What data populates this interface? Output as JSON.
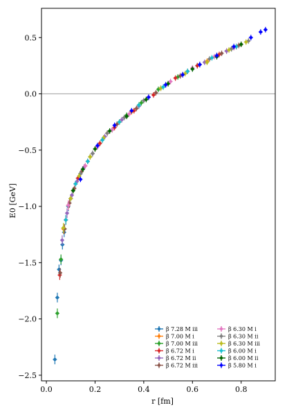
{
  "chart_data": {
    "type": "scatter",
    "xlabel": "r [fm]",
    "ylabel": "E0 [GeV]",
    "xlim": [
      -0.02,
      0.94
    ],
    "ylim": [
      -2.55,
      0.76
    ],
    "xticks": [
      "0.0",
      "0.2",
      "0.4",
      "0.6",
      "0.8"
    ],
    "xtick_values": [
      0.0,
      0.2,
      0.4,
      0.6,
      0.8
    ],
    "yticks": [
      "−2.5",
      "−2.0",
      "−1.5",
      "−1.0",
      "−0.5",
      "0.0",
      "0.5"
    ],
    "ytick_values": [
      -2.5,
      -2.0,
      -1.5,
      -1.0,
      -0.5,
      0.0,
      0.5
    ],
    "reference_line": 0.0,
    "legend_position": "bottom-right",
    "legend_columns": 2,
    "series": [
      {
        "name": "β 7.28 M iii",
        "color": "#1f77b4",
        "x": [
          0.035,
          0.045,
          0.052,
          0.06,
          0.066,
          0.073,
          0.08,
          0.09,
          0.1,
          0.11,
          0.12,
          0.13,
          0.14,
          0.15,
          0.17,
          0.19
        ],
        "y": [
          -2.36,
          -1.81,
          -1.56,
          -1.48,
          -1.34,
          -1.23,
          -1.12,
          -1.0,
          -0.93,
          -0.86,
          -0.8,
          -0.75,
          -0.71,
          -0.67,
          -0.6,
          -0.53
        ]
      },
      {
        "name": "β 7.00 M i",
        "color": "#ff7f0e",
        "x": [
          0.07,
          0.09,
          0.11,
          0.13,
          0.16,
          0.2,
          0.25,
          0.3,
          0.35,
          0.42,
          0.5,
          0.58,
          0.66,
          0.74,
          0.8
        ],
        "y": [
          -1.2,
          -0.99,
          -0.86,
          -0.75,
          -0.64,
          -0.49,
          -0.35,
          -0.25,
          -0.16,
          -0.03,
          0.09,
          0.2,
          0.29,
          0.38,
          0.44
        ]
      },
      {
        "name": "β 7.00 M iii",
        "color": "#2ca02c",
        "x": [
          0.045,
          0.06,
          0.075,
          0.1,
          0.12,
          0.14,
          0.18,
          0.22,
          0.27,
          0.33,
          0.39,
          0.46,
          0.54,
          0.62,
          0.7,
          0.76
        ],
        "y": [
          -1.95,
          -1.47,
          -1.2,
          -0.93,
          -0.8,
          -0.71,
          -0.56,
          -0.44,
          -0.32,
          -0.19,
          -0.08,
          0.04,
          0.15,
          0.25,
          0.34,
          0.4
        ]
      },
      {
        "name": "β 6.72 M i",
        "color": "#d62728",
        "x": [
          0.055,
          0.08,
          0.1,
          0.13,
          0.17,
          0.22,
          0.28,
          0.36,
          0.44,
          0.53,
          0.62,
          0.71,
          0.78
        ],
        "y": [
          -1.61,
          -1.12,
          -0.93,
          -0.75,
          -0.6,
          -0.44,
          -0.3,
          -0.15,
          -0.01,
          0.14,
          0.25,
          0.35,
          0.42
        ]
      },
      {
        "name": "β 6.72 M ii",
        "color": "#9467bd",
        "x": [
          0.065,
          0.085,
          0.105,
          0.125,
          0.155,
          0.19,
          0.24,
          0.31,
          0.38,
          0.47,
          0.56,
          0.65,
          0.74
        ],
        "y": [
          -1.3,
          -1.06,
          -0.9,
          -0.78,
          -0.65,
          -0.53,
          -0.38,
          -0.23,
          -0.11,
          0.05,
          0.17,
          0.28,
          0.38
        ]
      },
      {
        "name": "β 6.72 M iii",
        "color": "#8c564b",
        "x": [
          0.057,
          0.075,
          0.095,
          0.115,
          0.145,
          0.18,
          0.23,
          0.29,
          0.37,
          0.45,
          0.55,
          0.63,
          0.72,
          0.79
        ],
        "y": [
          -1.59,
          -1.2,
          -0.97,
          -0.84,
          -0.69,
          -0.56,
          -0.41,
          -0.27,
          -0.13,
          0.01,
          0.16,
          0.26,
          0.36,
          0.43
        ]
      },
      {
        "name": "β 6.30 M i",
        "color": "#e377c2",
        "x": [
          0.09,
          0.12,
          0.16,
          0.21,
          0.27,
          0.34,
          0.42,
          0.51,
          0.6,
          0.69,
          0.77
        ],
        "y": [
          -0.99,
          -0.8,
          -0.64,
          -0.47,
          -0.32,
          -0.18,
          -0.03,
          0.11,
          0.23,
          0.33,
          0.41
        ]
      },
      {
        "name": "β 6.30 M ii",
        "color": "#7f7f7f",
        "x": [
          0.1,
          0.14,
          0.19,
          0.25,
          0.32,
          0.4,
          0.49,
          0.58,
          0.67,
          0.76,
          0.83
        ],
        "y": [
          -0.93,
          -0.71,
          -0.53,
          -0.35,
          -0.21,
          -0.06,
          0.08,
          0.2,
          0.31,
          0.4,
          0.47
        ]
      },
      {
        "name": "β 6.30 M iii",
        "color": "#bcbd22",
        "x": [
          0.07,
          0.1,
          0.135,
          0.18,
          0.235,
          0.3,
          0.38,
          0.47,
          0.57,
          0.66,
          0.75,
          0.82
        ],
        "y": [
          -1.19,
          -0.93,
          -0.73,
          -0.56,
          -0.39,
          -0.25,
          -0.1,
          0.05,
          0.18,
          0.28,
          0.39,
          0.46
        ]
      },
      {
        "name": "β 6.00 M i",
        "color": "#17becf",
        "x": [
          0.08,
          0.12,
          0.17,
          0.23,
          0.3,
          0.38,
          0.48,
          0.58,
          0.68,
          0.78
        ],
        "y": [
          -1.12,
          -0.8,
          -0.6,
          -0.41,
          -0.25,
          -0.1,
          0.06,
          0.2,
          0.32,
          0.42
        ]
      },
      {
        "name": "β 6.00 M ii",
        "color": "#006400",
        "x": [
          0.11,
          0.15,
          0.2,
          0.26,
          0.33,
          0.41,
          0.5,
          0.6,
          0.7,
          0.8
        ],
        "y": [
          -0.86,
          -0.67,
          -0.49,
          -0.33,
          -0.2,
          -0.05,
          0.09,
          0.22,
          0.33,
          0.44
        ]
      },
      {
        "name": "β 5.80 M i",
        "color": "#0000ff",
        "x": [
          0.14,
          0.21,
          0.28,
          0.35,
          0.42,
          0.49,
          0.56,
          0.63,
          0.7,
          0.77,
          0.84,
          0.88,
          0.9
        ],
        "y": [
          -0.76,
          -0.46,
          -0.28,
          -0.15,
          -0.03,
          0.08,
          0.17,
          0.26,
          0.34,
          0.42,
          0.5,
          0.55,
          0.57
        ]
      }
    ]
  }
}
